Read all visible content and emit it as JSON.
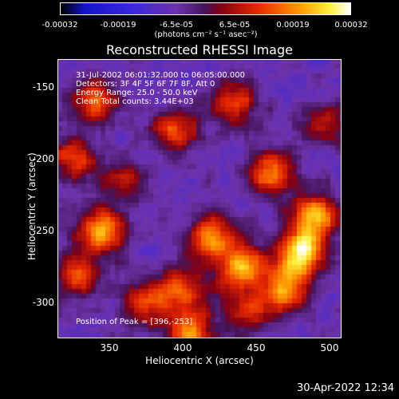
{
  "colorbar": {
    "ticks": [
      "-0.00032",
      "-0.00019",
      "-6.5e-05",
      "6.5e-05",
      "0.00019",
      "0.00032"
    ],
    "units": "(photons cm⁻² s⁻¹ asec⁻²)"
  },
  "chart_data": {
    "type": "heatmap",
    "title": "Reconstructed RHESSI Image",
    "xlabel": "Heliocentric X (arcsec)",
    "ylabel": "Heliocentric Y (arcsec)",
    "xlim": [
      315,
      508
    ],
    "ylim": [
      -325,
      -130
    ],
    "xticks": [
      "350",
      "400",
      "450",
      "500"
    ],
    "yticks": [
      "-150",
      "-200",
      "-250",
      "-300"
    ],
    "value_range": [
      -0.00032,
      0.00032
    ],
    "colormap": "rhessi-heat",
    "info_lines": [
      "31-Jul-2002 06:01:32.000 to 06:05:00.000",
      "Detectors: 3F 4F 5F 6F 7F 8F, Att 0",
      "Energy Range: 25.0 - 50.0 keV",
      "Clean    Total counts: 3.44E+03"
    ],
    "peak_label": "Position of Peak = [396,-253]",
    "peak_position": [
      396,
      -253
    ],
    "blobs": [
      {
        "x": 480,
        "y": -265,
        "v": 1.0
      },
      {
        "x": 490,
        "y": -240,
        "v": 0.9
      },
      {
        "x": 470,
        "y": -290,
        "v": 0.8
      },
      {
        "x": 440,
        "y": -275,
        "v": 0.85
      },
      {
        "x": 420,
        "y": -255,
        "v": 0.75
      },
      {
        "x": 400,
        "y": -290,
        "v": 0.65
      },
      {
        "x": 345,
        "y": -250,
        "v": 0.85
      },
      {
        "x": 330,
        "y": -280,
        "v": 0.55
      },
      {
        "x": 340,
        "y": -160,
        "v": 0.7
      },
      {
        "x": 325,
        "y": -200,
        "v": 0.6
      },
      {
        "x": 395,
        "y": -180,
        "v": 0.6
      },
      {
        "x": 435,
        "y": -160,
        "v": 0.55
      },
      {
        "x": 460,
        "y": -210,
        "v": 0.75
      },
      {
        "x": 495,
        "y": -175,
        "v": 0.45
      },
      {
        "x": 375,
        "y": -300,
        "v": 0.6
      },
      {
        "x": 445,
        "y": -305,
        "v": 0.55
      },
      {
        "x": 405,
        "y": -320,
        "v": 0.7
      },
      {
        "x": 360,
        "y": -215,
        "v": 0.4
      }
    ]
  },
  "footer": {
    "timestamp": "30-Apr-2022 12:34"
  }
}
